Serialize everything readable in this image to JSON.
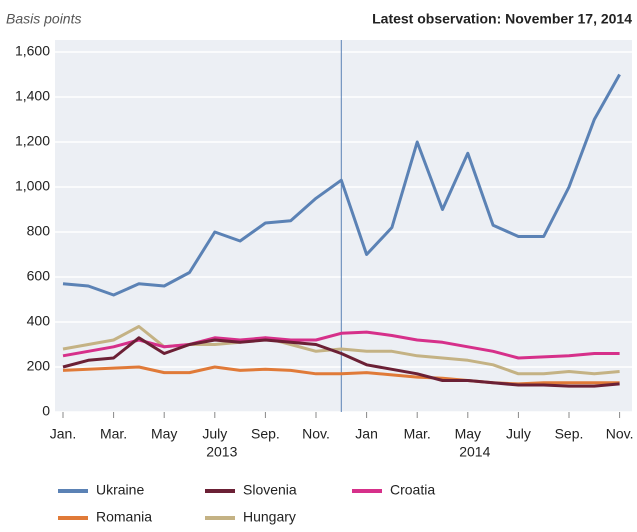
{
  "chart_data": {
    "type": "line",
    "y_label": "Basis points",
    "note": "Latest observation: November 17, 2014",
    "x": [
      "2013-01",
      "2013-02",
      "2013-03",
      "2013-04",
      "2013-05",
      "2013-06",
      "2013-07",
      "2013-08",
      "2013-09",
      "2013-10",
      "2013-11",
      "2013-12",
      "2014-01",
      "2014-02",
      "2014-03",
      "2014-04",
      "2014-05",
      "2014-06",
      "2014-07",
      "2014-08",
      "2014-09",
      "2014-10",
      "2014-11"
    ],
    "series": [
      {
        "name": "Ukraine",
        "color": "#5b82b5",
        "values": [
          570,
          560,
          520,
          570,
          560,
          620,
          800,
          760,
          840,
          850,
          950,
          1030,
          700,
          820,
          1200,
          900,
          1150,
          830,
          780,
          780,
          1000,
          1300,
          1500
        ]
      },
      {
        "name": "Slovenia",
        "color": "#6b2035",
        "values": [
          200,
          230,
          240,
          330,
          260,
          300,
          320,
          310,
          320,
          310,
          300,
          260,
          210,
          190,
          170,
          140,
          140,
          130,
          120,
          120,
          115,
          115,
          125
        ]
      },
      {
        "name": "Croatia",
        "color": "#d6308a",
        "values": [
          250,
          270,
          290,
          320,
          290,
          300,
          330,
          320,
          330,
          320,
          320,
          350,
          355,
          340,
          320,
          310,
          290,
          270,
          240,
          245,
          250,
          260,
          260
        ]
      },
      {
        "name": "Romania",
        "color": "#e07a38",
        "values": [
          185,
          190,
          195,
          200,
          175,
          175,
          200,
          185,
          190,
          185,
          170,
          170,
          175,
          165,
          155,
          150,
          140,
          130,
          125,
          130,
          130,
          130,
          130
        ]
      },
      {
        "name": "Hungary",
        "color": "#c4b284",
        "values": [
          280,
          300,
          320,
          380,
          290,
          300,
          300,
          310,
          330,
          300,
          270,
          280,
          270,
          270,
          250,
          240,
          230,
          210,
          170,
          170,
          180,
          170,
          180
        ]
      }
    ],
    "ylim": [
      0,
      1600
    ],
    "yticks": [
      0,
      200,
      400,
      600,
      800,
      {
        "value": 1000,
        "label": "1,000"
      },
      {
        "value": 1200,
        "label": "1,200"
      },
      {
        "value": 1400,
        "label": "1,400"
      },
      {
        "value": 1600,
        "label": "1,600"
      }
    ],
    "xticks": [
      {
        "value": "2013-01",
        "label": "Jan."
      },
      {
        "value": "2013-03",
        "label": "Mar."
      },
      {
        "value": "2013-05",
        "label": "May"
      },
      {
        "value": "2013-07",
        "label": "July"
      },
      {
        "value": "2013-09",
        "label": "Sep."
      },
      {
        "value": "2013-11",
        "label": "Nov."
      },
      {
        "value": "2014-01",
        "label": "Jan"
      },
      {
        "value": "2014-03",
        "label": "Mar."
      },
      {
        "value": "2014-05",
        "label": "May"
      },
      {
        "value": "2014-07",
        "label": "July"
      },
      {
        "value": "2014-09",
        "label": "Sep."
      },
      {
        "value": "2014-11",
        "label": "Nov."
      }
    ],
    "year_labels": [
      {
        "value": "2013-07",
        "label": "2013"
      },
      {
        "value": "2014-05",
        "label": "2014"
      }
    ],
    "vline": "2013-12",
    "grid": true
  }
}
